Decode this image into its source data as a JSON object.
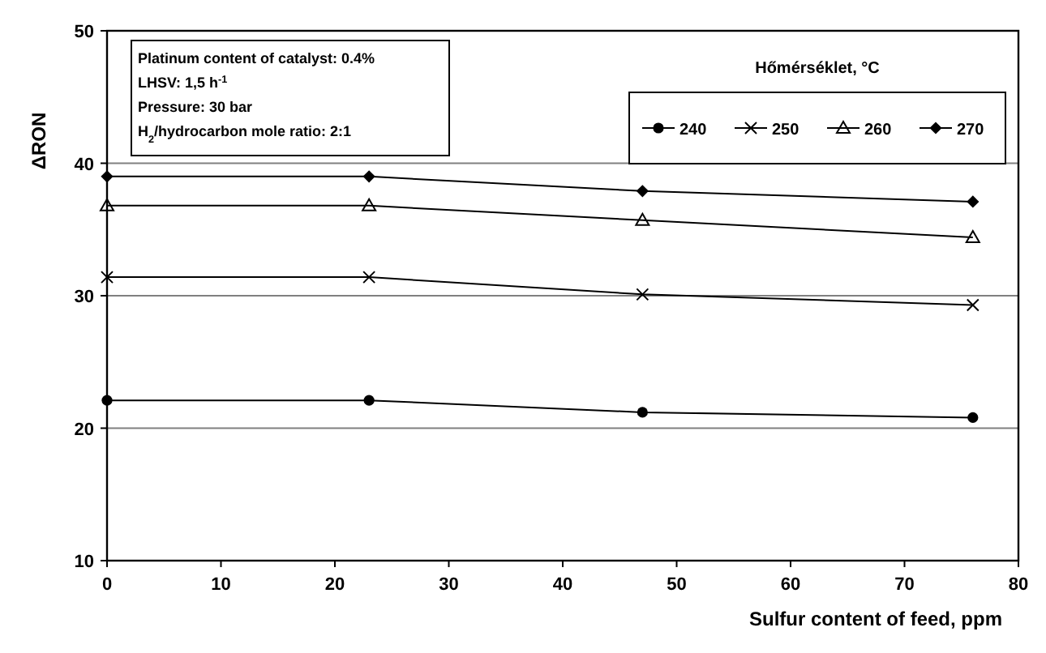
{
  "chart_data": {
    "type": "line",
    "xlabel": "Sulfur content of feed, ppm",
    "ylabel": "ΔRON",
    "legend_title": "Hőmérséklet, °C",
    "x": [
      0,
      23,
      47,
      76
    ],
    "series": [
      {
        "name": "240",
        "color": "#000000",
        "marker": "circle",
        "values": [
          22.1,
          22.1,
          21.2,
          20.8
        ]
      },
      {
        "name": "250",
        "color": "#000000",
        "marker": "cross",
        "values": [
          31.4,
          31.4,
          30.1,
          29.3
        ]
      },
      {
        "name": "260",
        "color": "#000000",
        "marker": "triangle",
        "values": [
          36.8,
          36.8,
          35.7,
          34.4
        ]
      },
      {
        "name": "270",
        "color": "#000000",
        "marker": "diamond",
        "values": [
          39.0,
          39.0,
          37.9,
          37.1
        ]
      }
    ],
    "xlim": [
      0,
      80
    ],
    "xticks": [
      0,
      10,
      20,
      30,
      40,
      50,
      60,
      70,
      80
    ],
    "ylim": [
      10,
      50
    ],
    "yticks": [
      10,
      20,
      30,
      40,
      50
    ],
    "grid": "y",
    "legend": "top right",
    "annotations": [
      "Platinum content of catalyst: 0.4%",
      "LHSV: 1,5 h$^{-1}$",
      "Pressure: 30 bar",
      "H$_{2}$/hydrocarbon mole ratio: 2:1"
    ]
  }
}
